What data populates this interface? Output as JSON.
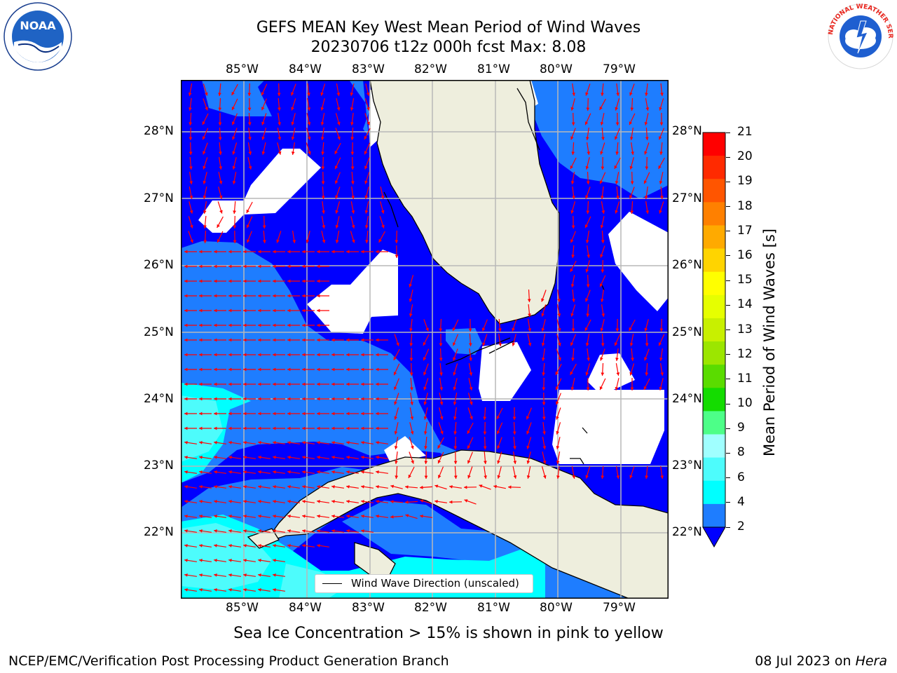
{
  "title": {
    "line1": "GEFS MEAN Key West Mean Period of Wind Waves",
    "line2": "20230706 t12z 000h fcst   Max: 8.08"
  },
  "logos": {
    "left": "noaa-logo",
    "left_text": "NOAA",
    "right": "nws-logo",
    "right_text": "NATIONAL WEATHER SERVICE"
  },
  "map": {
    "lon_labels": [
      "85°W",
      "84°W",
      "83°W",
      "82°W",
      "81°W",
      "80°W",
      "79°W"
    ],
    "lat_labels": [
      "28°N",
      "27°N",
      "26°N",
      "25°N",
      "24°N",
      "23°N",
      "22°N"
    ],
    "legend_text": "Wind Wave Direction (unscaled)",
    "colors": {
      "ocean_blue": "#0000ff",
      "light_blue": "#1e7dff",
      "cyan": "#00ffff",
      "light_cyan": "#4dfcfc",
      "land": "#eeeedd",
      "missing": "#ffffff",
      "arrow": "#ff0000",
      "grid": "#b8b8b8"
    }
  },
  "colorbar": {
    "label": "Mean Period of Wind Waves [s]",
    "ticks": [
      "21",
      "20",
      "19",
      "18",
      "17",
      "16",
      "15",
      "14",
      "13",
      "12",
      "11",
      "10",
      "9",
      "8",
      "6",
      "4",
      "2"
    ],
    "colors": [
      "#ff0000",
      "#ff2a00",
      "#ff5500",
      "#ff8000",
      "#ffaa00",
      "#ffd400",
      "#ffff00",
      "#e6ff00",
      "#c8f000",
      "#9ce600",
      "#5adc00",
      "#14dc00",
      "#4dff88",
      "#a0ffff",
      "#4dfcfc",
      "#00ffff",
      "#1e7dff"
    ],
    "under_color": "#0000ff"
  },
  "footer": {
    "note": "Sea Ice Concentration > 15% is shown in pink to yellow",
    "left": "NCEP/EMC/Verification Post Processing Product Generation Branch",
    "right_prefix": "08 Jul 2023 on ",
    "right_host": "Hera"
  }
}
